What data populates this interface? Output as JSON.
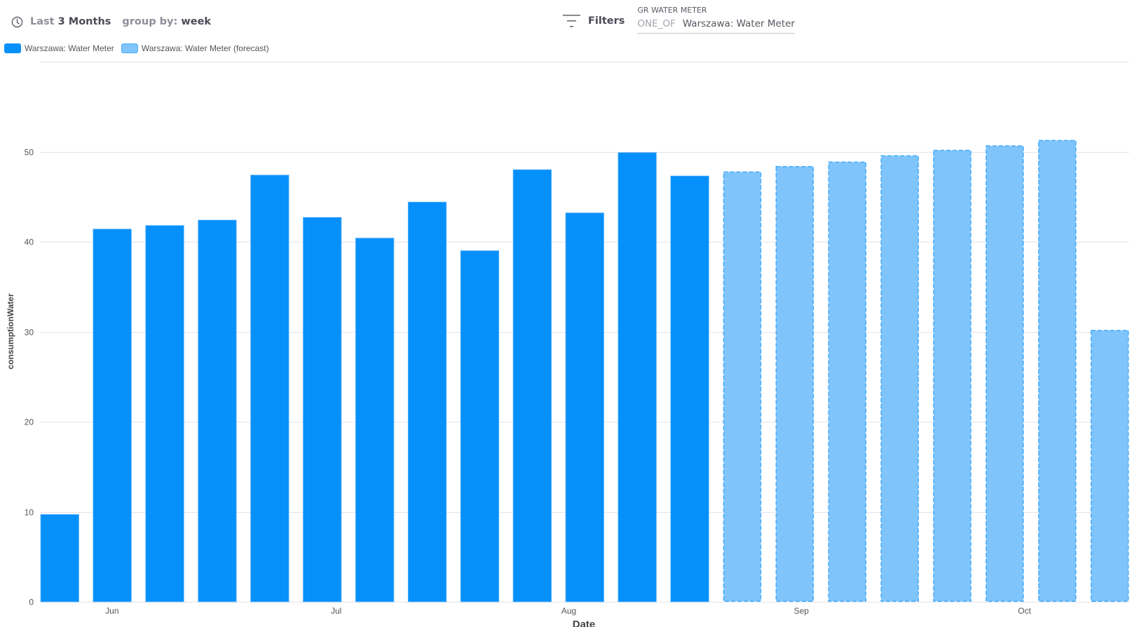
{
  "toolbar": {
    "range_prefix": "Last",
    "range_value": "3 Months",
    "group_prefix": "group by:",
    "group_value": "week",
    "clock_icon": "clock-icon"
  },
  "filters": {
    "label": "Filters",
    "icon": "filter-icon",
    "chip": {
      "title": "GR WATER METER",
      "operator": "ONE_OF",
      "value": "Warszawa: Water Meter"
    }
  },
  "legend": [
    {
      "label": "Warszawa: Water Meter",
      "color": "#0590fb",
      "border": "#0590fb"
    },
    {
      "label": "Warszawa: Water Meter (forecast)",
      "color": "#80c4fc",
      "border": "#4db0fb"
    }
  ],
  "colors": {
    "actual": "#0590fb",
    "forecast_fill": "#80c4fc",
    "forecast_border": "#44acfa",
    "grid": "#e0e4ec",
    "tick_text": "#555555"
  },
  "chart_data": {
    "type": "bar",
    "title": "",
    "xlabel": "Date",
    "ylabel": "consumptionWater",
    "ylim": [
      0,
      55
    ],
    "yticks": [
      0,
      10,
      20,
      30,
      40,
      50
    ],
    "grid": true,
    "legend_position": "top-left",
    "xtick_labels": [
      {
        "label": "Jun",
        "after_bar_index": 1.36
      },
      {
        "label": "Jul",
        "after_bar_index": 5.63
      },
      {
        "label": "Aug",
        "after_bar_index": 10.06
      },
      {
        "label": "Sep",
        "after_bar_index": 14.49
      },
      {
        "label": "Oct",
        "after_bar_index": 18.74
      }
    ],
    "series": [
      {
        "name": "Warszawa: Water Meter",
        "style": "solid",
        "values": [
          9.7,
          41.4,
          41.8,
          42.4,
          47.4,
          42.7,
          40.4,
          44.4,
          39.0,
          48.0,
          43.2,
          49.9,
          47.3
        ]
      },
      {
        "name": "Warszawa: Water Meter (forecast)",
        "style": "dashed",
        "values": [
          47.8,
          48.4,
          48.9,
          49.6,
          50.2,
          50.7,
          51.3,
          30.2
        ]
      }
    ]
  }
}
